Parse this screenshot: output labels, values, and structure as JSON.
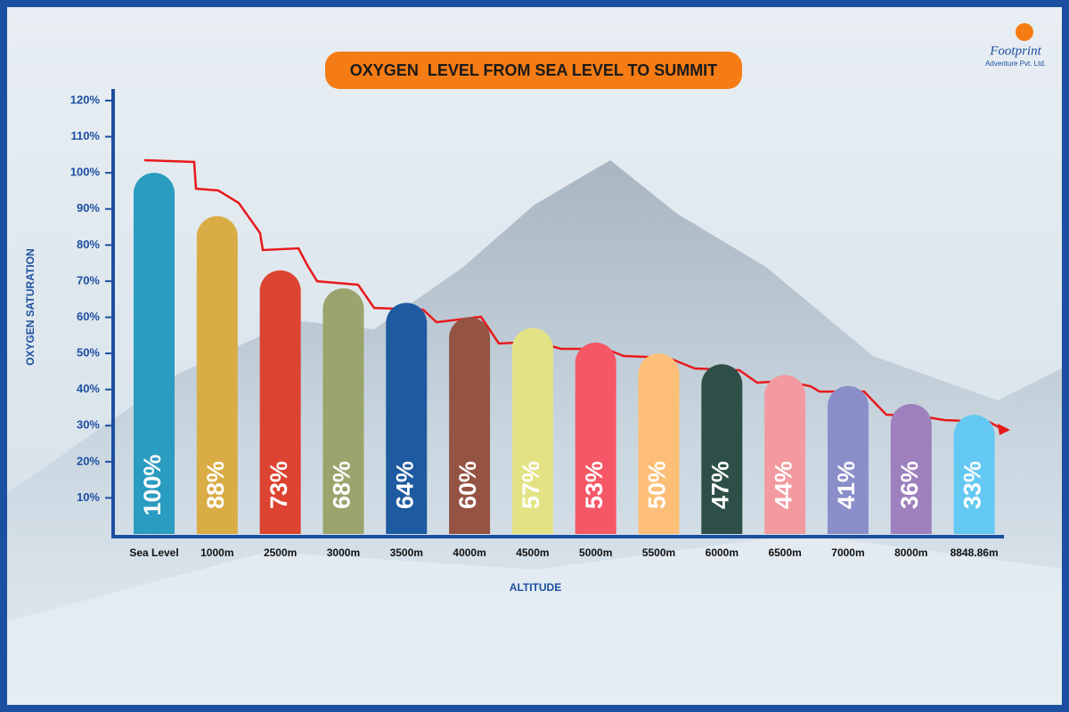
{
  "chart_data": {
    "type": "bar",
    "title": "OXYGEN  LEVEL FROM SEA LEVEL TO SUMMIT",
    "brand": "Footprint",
    "brand_subtitle": "Adventure Pvt. Ltd.",
    "y_label": "OXYGEN SATURATION",
    "x_label": "ALTITUDE",
    "categories": [
      "Sea Level",
      "1000m",
      "2500m",
      "3000m",
      "3500m",
      "4000m",
      "4500m",
      "5000m",
      "5500m",
      "6000m",
      "6500m",
      "7000m",
      "8000m",
      "8848.86m"
    ],
    "values": [
      100,
      88,
      73,
      68,
      64,
      60,
      57,
      53,
      50,
      47,
      44,
      41,
      36,
      33
    ],
    "value_labels": [
      "100%",
      "88%",
      "73%",
      "68%",
      "64%",
      "60%",
      "57%",
      "53%",
      "50%",
      "47%",
      "44%",
      "41%",
      "36%",
      "33%"
    ],
    "colors": [
      "#2a9cc0",
      "#d9ac45",
      "#dc4330",
      "#9aa46c",
      "#1e5aa0",
      "#955343",
      "#e3e385",
      "#f55766",
      "#fdbf78",
      "#2e4f48",
      "#f39aa0",
      "#8a8fca",
      "#9d80bd",
      "#64c9f2"
    ],
    "ylim": [
      0,
      120
    ],
    "yticks": [
      {
        "value": 10,
        "label": "10%"
      },
      {
        "value": 20,
        "label": "20%"
      },
      {
        "value": 30,
        "label": "30%"
      },
      {
        "value": 40,
        "label": "40%"
      },
      {
        "value": 50,
        "label": "50%"
      },
      {
        "value": 60,
        "label": "60%"
      },
      {
        "value": 70,
        "label": "70%"
      },
      {
        "value": 80,
        "label": "80%"
      },
      {
        "value": 90,
        "label": "90%"
      },
      {
        "value": 100,
        "label": "100%"
      },
      {
        "value": 110,
        "label": "110%"
      },
      {
        "value": 120,
        "label": "120%"
      }
    ]
  }
}
